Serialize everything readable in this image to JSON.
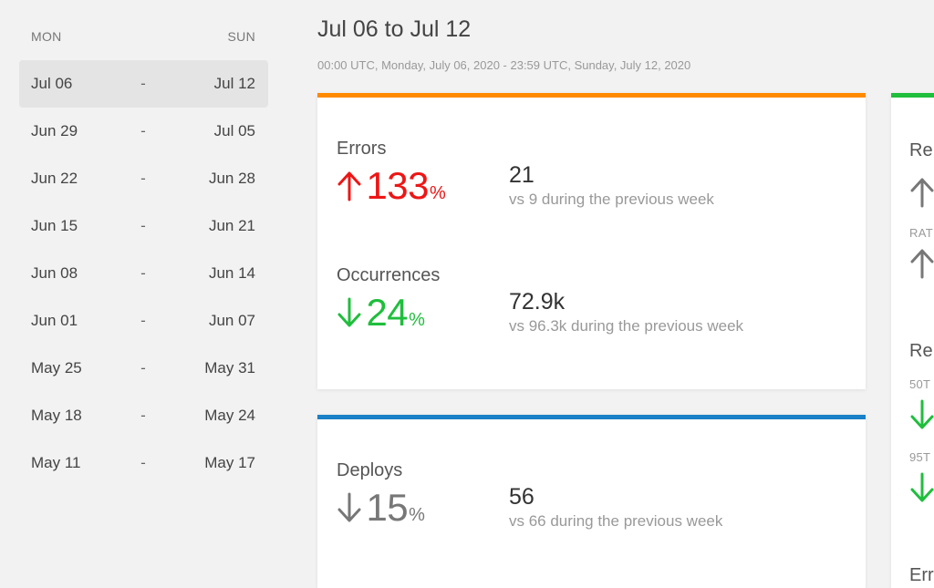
{
  "sidebar": {
    "head_left": "MON",
    "head_right": "SUN",
    "dash": "-",
    "weeks": [
      {
        "start": "Jul 06",
        "end": "Jul 12"
      },
      {
        "start": "Jun 29",
        "end": "Jul 05"
      },
      {
        "start": "Jun 22",
        "end": "Jun 28"
      },
      {
        "start": "Jun 15",
        "end": "Jun 21"
      },
      {
        "start": "Jun 08",
        "end": "Jun 14"
      },
      {
        "start": "Jun 01",
        "end": "Jun 07"
      },
      {
        "start": "May 25",
        "end": "May 31"
      },
      {
        "start": "May 18",
        "end": "May 24"
      },
      {
        "start": "May 11",
        "end": "May 17"
      }
    ]
  },
  "header": {
    "title": "Jul 06 to Jul 12",
    "subtitle": "00:00 UTC, Monday, July 06, 2020 - 23:59 UTC, Sunday, July 12, 2020"
  },
  "card_health": {
    "accent": "#ff8a00",
    "errors": {
      "label": "Errors",
      "direction": "up",
      "pct": "133",
      "pct_sign": "%",
      "color": "#ee1515",
      "value": "21",
      "comparison": "vs 9 during the previous week"
    },
    "occurrences": {
      "label": "Occurrences",
      "direction": "down",
      "pct": "24",
      "pct_sign": "%",
      "color": "#1fbe3c",
      "value": "72.9k",
      "comparison": "vs 96.3k during the previous week"
    }
  },
  "card_deploys": {
    "accent": "#1a80c8",
    "deploys": {
      "label": "Deploys",
      "direction": "down",
      "pct": "15",
      "pct_sign": "%",
      "color": "#777777",
      "value": "56",
      "comparison": "vs 66 during the previous week"
    }
  },
  "card_side": {
    "accent": "#1fbe3c",
    "frag1": "Re",
    "frag2": "RAT",
    "frag3": "Re",
    "frag4": "50T",
    "frag5": "95T",
    "frag6": "Err"
  }
}
